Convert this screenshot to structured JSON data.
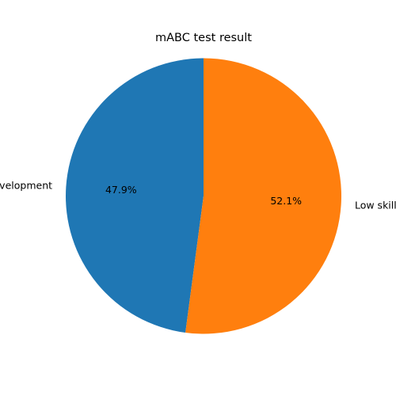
{
  "chart_data": {
    "type": "pie",
    "title": "mABC test result",
    "slices": [
      {
        "label": "Normal development",
        "value": 47.9,
        "pct_label": "47.9%",
        "color": "#1f77b4"
      },
      {
        "label": "Low skill",
        "value": 52.1,
        "pct_label": "52.1%",
        "color": "#ff7f0e"
      }
    ],
    "start_angle_deg": 90,
    "direction": "counterclockwise"
  }
}
